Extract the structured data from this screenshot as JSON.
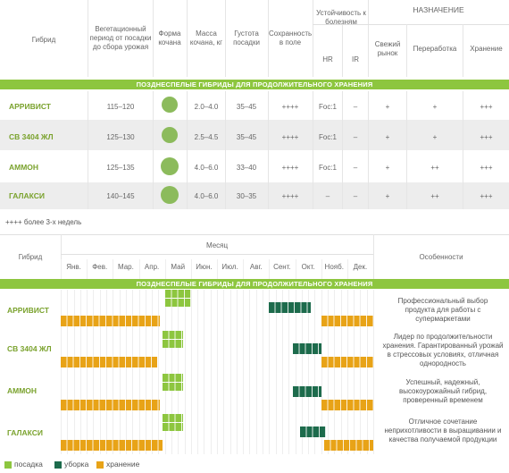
{
  "top_table": {
    "headers": {
      "hybrid": "Гибрид",
      "period": "Вегетационный период от посадки до сбора урожая",
      "shape": "Форма кочана",
      "mass": "Масса кочана, кг",
      "density": "Густота посадки",
      "storage": "Сохранность в поле",
      "resistance": "Устойчивость к болезням",
      "hr": "HR",
      "ir": "IR",
      "purpose": "НАЗНАЧЕНИЕ",
      "fresh": "Свежий рынок",
      "processing": "Переработка",
      "keeping": "Хранение"
    },
    "section": "ПОЗДНЕСПЕЛЫЕ ГИБРИДЫ ДЛЯ ПРОДОЛЖИТЕЛЬНОГО ХРАНЕНИЯ",
    "rows": [
      {
        "name": "АРРИВИСТ",
        "period": "115–120",
        "mass": "2.0–4.0",
        "density": "35–45",
        "storage": "++++",
        "hr": "Foc:1",
        "ir": "–",
        "fresh": "+",
        "processing": "+",
        "keeping": "+++"
      },
      {
        "name": "СВ 3404 ЖЛ",
        "period": "125–130",
        "mass": "2.5–4.5",
        "density": "35–45",
        "storage": "++++",
        "hr": "Foc:1",
        "ir": "–",
        "fresh": "+",
        "processing": "+",
        "keeping": "+++"
      },
      {
        "name": "АММОН",
        "period": "125–135",
        "mass": "4.0–6.0",
        "density": "33–40",
        "storage": "++++",
        "hr": "Foc:1",
        "ir": "–",
        "fresh": "+",
        "processing": "++",
        "keeping": "+++"
      },
      {
        "name": "ГАЛАКСИ",
        "period": "140–145",
        "mass": "4.0–6.0",
        "density": "30–35",
        "storage": "++++",
        "hr": "–",
        "ir": "–",
        "fresh": "+",
        "processing": "++",
        "keeping": "+++"
      }
    ],
    "footnote": "++++ более 3-х недель"
  },
  "calendar": {
    "headers": {
      "hybrid": "Гибрид",
      "month": "Месяц",
      "features": "Особенности"
    },
    "months": [
      "Янв.",
      "Фев.",
      "Мар.",
      "Апр.",
      "Май",
      "Июн.",
      "Июл.",
      "Авг.",
      "Сент.",
      "Окт.",
      "Нояб.",
      "Дек."
    ],
    "section": "ПОЗДНЕСПЕЛЫЕ ГИБРИДЫ ДЛЯ ПРОДОЛЖИТЕЛЬНОГО ХРАНЕНИЯ",
    "rows": [
      {
        "name": "АРРИВИСТ",
        "feature": "Профессиональный выбор продукта для работы с супермаркетами",
        "planting": [
          4.0,
          5.0
        ],
        "harvest": [
          8.0,
          9.6
        ],
        "storage_a": [
          0,
          3.8
        ],
        "storage_b": [
          10.0,
          12
        ]
      },
      {
        "name": "СВ 3404 ЖЛ",
        "feature": "Лидер по продолжительности хранения. Гарантированный урожай в стрессовых условиях, отличная однородность",
        "planting": [
          3.9,
          4.7
        ],
        "harvest": [
          8.9,
          10.0
        ],
        "storage_a": [
          0,
          3.7
        ],
        "storage_b": [
          10.0,
          12
        ]
      },
      {
        "name": "АММОН",
        "feature": "Успешный, надежный, высокоурожайный гибрид, проверенный временем",
        "planting": [
          3.9,
          4.7
        ],
        "harvest": [
          8.9,
          10.0
        ],
        "storage_a": [
          0,
          3.8
        ],
        "storage_b": [
          10.0,
          12
        ]
      },
      {
        "name": "ГАЛАКСИ",
        "feature": "Отличное сочетание неприхотливости в выращивании и качества получаемой продукции",
        "planting": [
          3.9,
          4.7
        ],
        "harvest": [
          9.2,
          10.2
        ],
        "storage_a": [
          0,
          3.9
        ],
        "storage_b": [
          10.1,
          12
        ]
      }
    ]
  },
  "legend": {
    "planting": "посадка",
    "harvest": "уборка",
    "storage": "хранение"
  },
  "colors": {
    "green": "#8dc63f",
    "dark_green": "#1d6b4c",
    "orange": "#e8a317",
    "ball": "#8cbb5c"
  }
}
